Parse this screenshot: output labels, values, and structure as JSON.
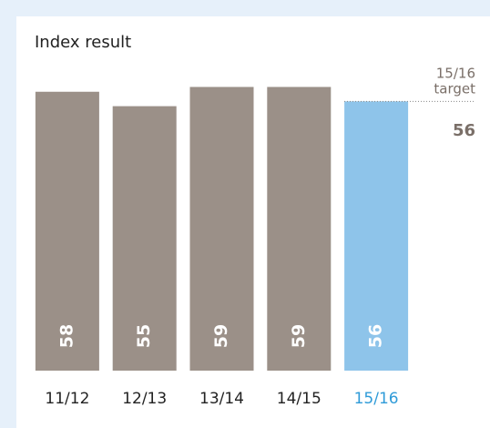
{
  "chart_data": {
    "type": "bar",
    "title": "Index result",
    "categories": [
      "11/12",
      "12/13",
      "13/14",
      "14/15",
      "15/16"
    ],
    "values": [
      58,
      55,
      59,
      59,
      56
    ],
    "colors": [
      "#9b9088",
      "#9b9088",
      "#9b9088",
      "#9b9088",
      "#8ec4ea"
    ],
    "label_colors": [
      "#222222",
      "#222222",
      "#222222",
      "#222222",
      "#2f9bd8"
    ],
    "ylim": [
      0,
      70
    ],
    "target": {
      "label": [
        "15/16",
        "target"
      ],
      "value": 56,
      "color": "#7a6f68"
    }
  }
}
